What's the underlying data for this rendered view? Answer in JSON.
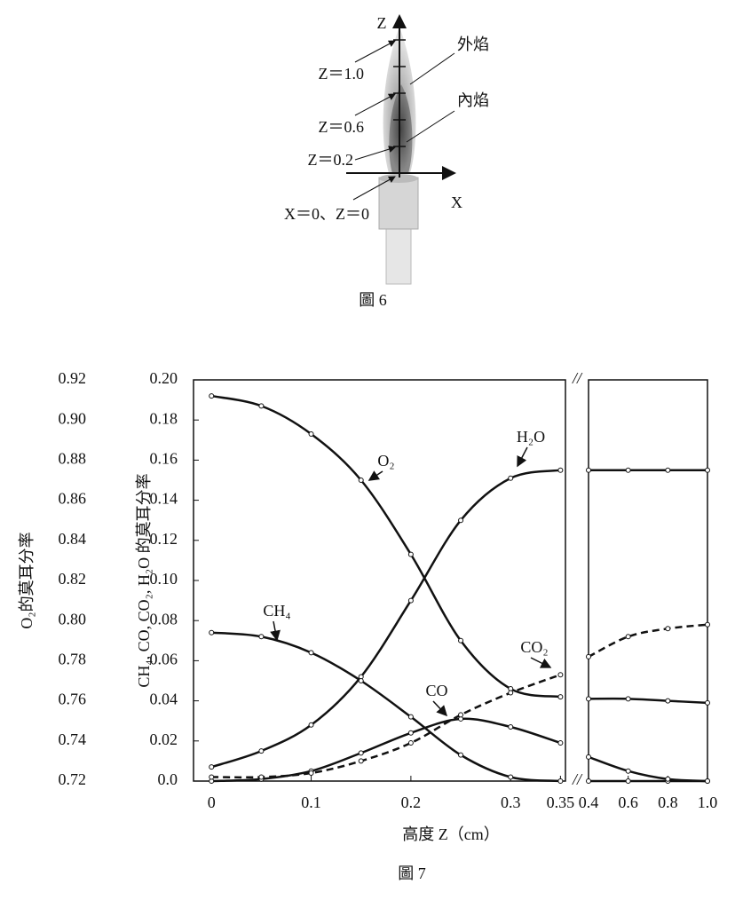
{
  "figure6": {
    "labels": {
      "z_axis": "Z",
      "x_axis": "X",
      "outer": "外焰",
      "inner": "內焰",
      "z10": "Z＝1.0",
      "z06": "Z＝0.6",
      "z02": "Z＝0.2",
      "origin": "X＝0、Z＝0"
    },
    "caption": "圖 6"
  },
  "chart_data": {
    "type": "line",
    "caption": "圖 7",
    "x_label": "高度 Z（cm）",
    "y_label": "CH₄, CO, CO₂, H₂O 的莫耳分率",
    "y2_label": "O₂的莫耳分率",
    "x": [
      0,
      0.05,
      0.1,
      0.15,
      0.2,
      0.25,
      0.3,
      0.35,
      0.4,
      0.6,
      0.8,
      1.0
    ],
    "xsegments": [
      {
        "xlim": [
          -0.018,
          0.355
        ],
        "xticks": [
          0,
          0.1,
          0.2,
          0.3,
          0.35
        ]
      },
      {
        "xlim": [
          0.4,
          1.0
        ],
        "xticks": [
          0.4,
          0.6,
          0.8,
          {
            "value": 1.0,
            "label": "1.0"
          }
        ]
      }
    ],
    "ylim": [
      0,
      0.2
    ],
    "yticks": [
      {
        "value": 0,
        "label": "0.0"
      },
      0.02,
      0.04,
      0.06,
      0.08,
      {
        "value": 0.1,
        "label": "0.10"
      },
      0.12,
      0.14,
      0.16,
      0.18,
      {
        "value": 0.2,
        "label": "0.20"
      }
    ],
    "y2lim": [
      0.72,
      0.92
    ],
    "y2ticks": [
      0.72,
      0.74,
      0.76,
      0.78,
      {
        "value": 0.8,
        "label": "0.80"
      },
      0.82,
      0.84,
      0.86,
      0.88,
      {
        "value": 0.9,
        "label": "0.90"
      },
      0.92
    ],
    "series": [
      {
        "name": "O₂",
        "color": "#111111",
        "axis": "y2",
        "values": [
          0.912,
          0.907,
          0.893,
          0.87,
          0.833,
          0.79,
          0.766,
          0.762,
          0.761,
          0.761,
          0.76,
          0.759
        ]
      },
      {
        "name": "H₂O",
        "color": "#111111",
        "values": [
          0.007,
          0.015,
          0.028,
          0.052,
          0.09,
          0.13,
          0.151,
          0.155,
          0.155,
          0.155,
          0.155,
          0.155
        ]
      },
      {
        "name": "CH₄",
        "color": "#111111",
        "values": [
          0.074,
          0.072,
          0.064,
          0.05,
          0.032,
          0.013,
          0.002,
          0.0,
          0.0,
          0.0,
          0.0,
          0.0
        ]
      },
      {
        "name": "CO",
        "color": "#111111",
        "values": [
          0.0,
          0.001,
          0.005,
          0.014,
          0.024,
          0.031,
          0.027,
          0.019,
          0.012,
          0.005,
          0.001,
          0.0
        ]
      },
      {
        "name": "CO₂",
        "color": "#111111",
        "dash": true,
        "values": [
          0.002,
          0.002,
          0.004,
          0.01,
          0.019,
          0.033,
          0.044,
          0.053,
          0.062,
          0.072,
          0.076,
          0.078
        ]
      }
    ]
  }
}
